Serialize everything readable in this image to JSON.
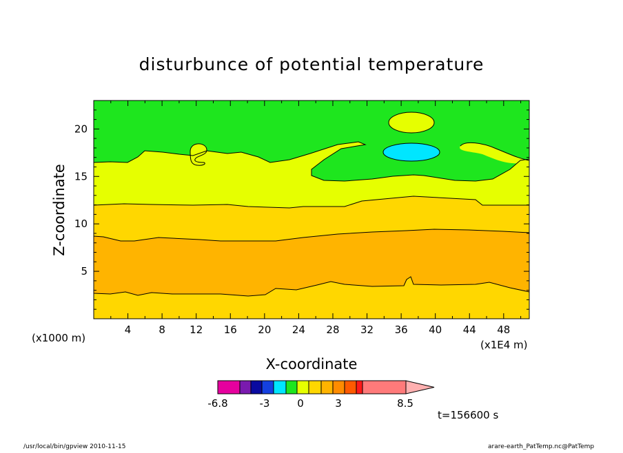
{
  "chart_data": {
    "type": "heatmap",
    "title": "disturbunce of potential temperature",
    "xlabel": "X-coordinate",
    "ylabel": "Z-coordinate",
    "x_unit": "(x1E4 m)",
    "y_unit": "(x1000 m)",
    "xlim": [
      0,
      51
    ],
    "ylim": [
      0,
      23
    ],
    "x_ticks": [
      "4",
      "8",
      "12",
      "16",
      "20",
      "24",
      "28",
      "32",
      "36",
      "40",
      "44",
      "48"
    ],
    "y_ticks": [
      "5",
      "10",
      "15",
      "20"
    ],
    "time_label": "t=156600 s",
    "colorbar": {
      "colors": [
        "#e6009e",
        "#7a1aaf",
        "#0a0aa0",
        "#1440e0",
        "#00e6ff",
        "#1ee61e",
        "#e6ff00",
        "#ffd700",
        "#ffb400",
        "#ff8c00",
        "#ff5a00",
        "#ff1a1a",
        "#ff7a7a",
        "#ffb0b0"
      ],
      "tick_labels": [
        "-6.8",
        "-3",
        "0",
        "3",
        "8.5"
      ],
      "extend": "max"
    },
    "field_regions": [
      {
        "level": "upper",
        "color": "#1ee61e"
      },
      {
        "level": "band",
        "color": "#e6ff00"
      },
      {
        "level": "band",
        "color": "#ffd700"
      },
      {
        "level": "core",
        "color": "#ffb400"
      },
      {
        "level": "minimum",
        "color": "#00e6ff"
      }
    ]
  },
  "footer": {
    "left": "/usr/local/bin/gpview   2010-11-15",
    "right": "arare-earth_PatTemp.nc@PatTemp"
  }
}
